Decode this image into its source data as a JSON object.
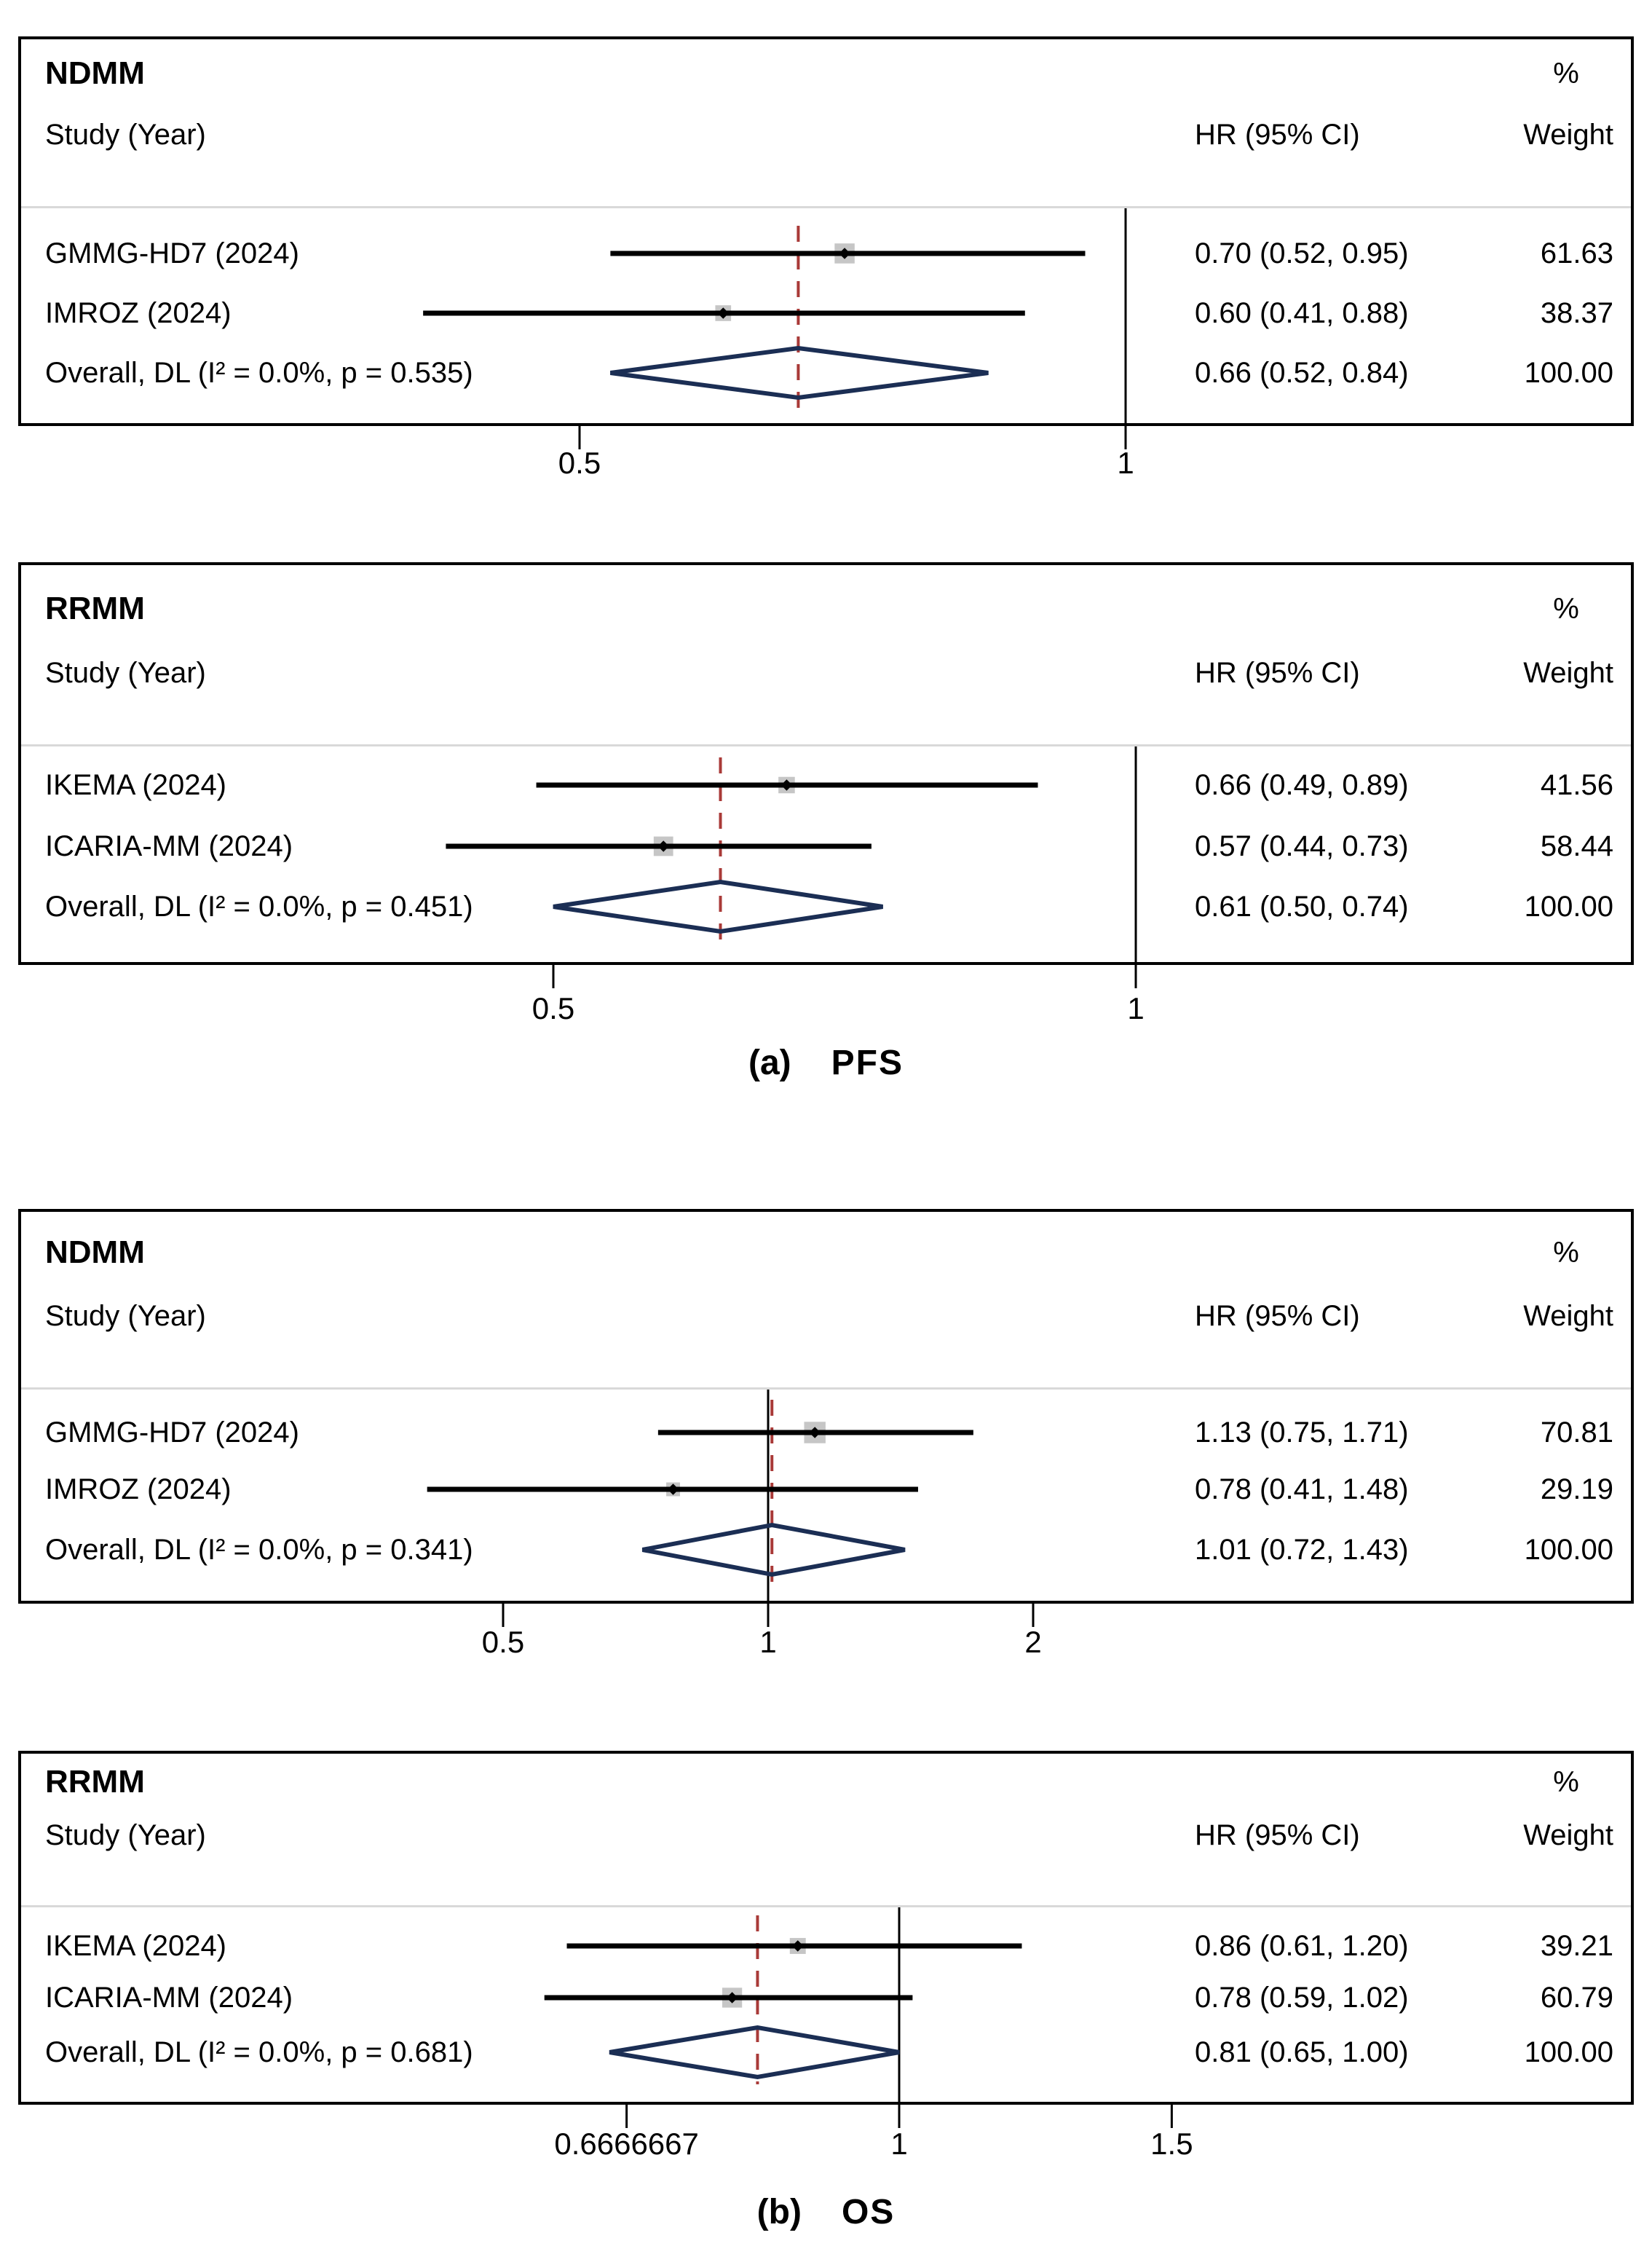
{
  "colors": {
    "ci_line": "#000000",
    "diamond_outline": "#1b2e54",
    "reference_dashed_line": "#a93a38",
    "null_line": "#000000",
    "weight_box": "#c6c6c6",
    "header_separator": "#d9d9d9"
  },
  "chart_data": {
    "type": "forest",
    "xscale": "log",
    "captions": [
      {
        "label": "(a)",
        "title": "PFS"
      },
      {
        "label": "(b)",
        "title": "OS"
      }
    ],
    "panels": [
      {
        "group": "NDMM",
        "outcome": "PFS",
        "columns": {
          "study": "Study (Year)",
          "hr": "HR (95% CI)",
          "pct": "%",
          "weight": "Weight"
        },
        "rows": [
          {
            "label": "GMMG-HD7 (2024)",
            "hr": 0.7,
            "lo": 0.52,
            "hi": 0.95,
            "hr_ci_text": "0.70 (0.52, 0.95)",
            "weight_text": "61.63"
          },
          {
            "label": "IMROZ (2024)",
            "hr": 0.6,
            "lo": 0.41,
            "hi": 0.88,
            "hr_ci_text": "0.60 (0.41, 0.88)",
            "weight_text": "38.37"
          }
        ],
        "overall": {
          "label": "Overall, DL (I² = 0.0%, p = 0.535)",
          "hr": 0.66,
          "lo": 0.52,
          "hi": 0.84,
          "hr_ci_text": "0.66 (0.52, 0.84)",
          "weight_text": "100.00"
        },
        "axis": {
          "ticks": [
            {
              "v": 0.5,
              "label": "0.5"
            },
            {
              "v": 1,
              "label": "1"
            }
          ],
          "null_line": 1,
          "pooled_hr": 0.66
        }
      },
      {
        "group": "RRMM",
        "outcome": "PFS",
        "columns": {
          "study": "Study (Year)",
          "hr": "HR (95% CI)",
          "pct": "%",
          "weight": "Weight"
        },
        "rows": [
          {
            "label": "IKEMA (2024)",
            "hr": 0.66,
            "lo": 0.49,
            "hi": 0.89,
            "hr_ci_text": "0.66 (0.49, 0.89)",
            "weight_text": "41.56"
          },
          {
            "label": "ICARIA-MM (2024)",
            "hr": 0.57,
            "lo": 0.44,
            "hi": 0.73,
            "hr_ci_text": "0.57 (0.44, 0.73)",
            "weight_text": "58.44"
          }
        ],
        "overall": {
          "label": "Overall, DL (I² = 0.0%, p = 0.451)",
          "hr": 0.61,
          "lo": 0.5,
          "hi": 0.74,
          "hr_ci_text": "0.61 (0.50, 0.74)",
          "weight_text": "100.00"
        },
        "axis": {
          "ticks": [
            {
              "v": 0.5,
              "label": "0.5"
            },
            {
              "v": 1,
              "label": "1"
            }
          ],
          "null_line": 1,
          "pooled_hr": 0.61
        }
      },
      {
        "group": "NDMM",
        "outcome": "OS",
        "columns": {
          "study": "Study (Year)",
          "hr": "HR (95% CI)",
          "pct": "%",
          "weight": "Weight"
        },
        "rows": [
          {
            "label": "GMMG-HD7 (2024)",
            "hr": 1.13,
            "lo": 0.75,
            "hi": 1.71,
            "hr_ci_text": "1.13 (0.75, 1.71)",
            "weight_text": "70.81"
          },
          {
            "label": "IMROZ (2024)",
            "hr": 0.78,
            "lo": 0.41,
            "hi": 1.48,
            "hr_ci_text": "0.78 (0.41, 1.48)",
            "weight_text": "29.19"
          }
        ],
        "overall": {
          "label": "Overall, DL (I² = 0.0%, p = 0.341)",
          "hr": 1.01,
          "lo": 0.72,
          "hi": 1.43,
          "hr_ci_text": "1.01 (0.72, 1.43)",
          "weight_text": "100.00"
        },
        "axis": {
          "ticks": [
            {
              "v": 0.5,
              "label": "0.5"
            },
            {
              "v": 1,
              "label": "1"
            },
            {
              "v": 2,
              "label": "2"
            }
          ],
          "null_line": 1,
          "pooled_hr": 1.01
        }
      },
      {
        "group": "RRMM",
        "outcome": "OS",
        "columns": {
          "study": "Study (Year)",
          "hr": "HR (95% CI)",
          "pct": "%",
          "weight": "Weight"
        },
        "rows": [
          {
            "label": "IKEMA (2024)",
            "hr": 0.86,
            "lo": 0.61,
            "hi": 1.2,
            "hr_ci_text": "0.86 (0.61, 1.20)",
            "weight_text": "39.21"
          },
          {
            "label": "ICARIA-MM (2024)",
            "hr": 0.78,
            "lo": 0.59,
            "hi": 1.02,
            "hr_ci_text": "0.78 (0.59, 1.02)",
            "weight_text": "60.79"
          }
        ],
        "overall": {
          "label": "Overall, DL (I² = 0.0%, p = 0.681)",
          "hr": 0.81,
          "lo": 0.65,
          "hi": 1.0,
          "hr_ci_text": "0.81 (0.65, 1.00)",
          "weight_text": "100.00"
        },
        "axis": {
          "ticks": [
            {
              "v": 0.6666667,
              "label": "0.6666667"
            },
            {
              "v": 1,
              "label": "1"
            },
            {
              "v": 1.5,
              "label": "1.5"
            }
          ],
          "null_line": 1,
          "pooled_hr": 0.81
        }
      }
    ]
  }
}
